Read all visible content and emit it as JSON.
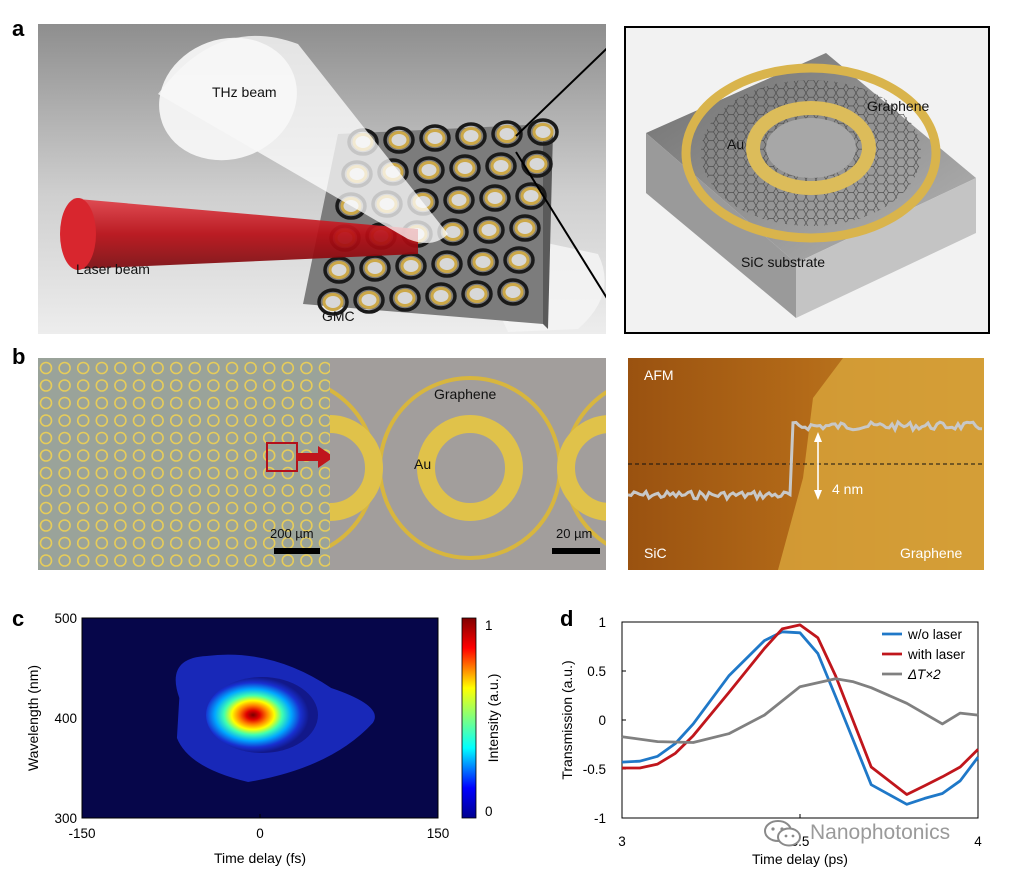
{
  "panels": {
    "a": {
      "letter": "a",
      "labels": {
        "thz_beam": "THz beam",
        "laser_beam": "Laser beam",
        "gmc": "GMC"
      },
      "inset": {
        "graphene": "Graphene",
        "au": "Au",
        "sic_substrate": "SiC substrate"
      }
    },
    "b": {
      "letter": "b",
      "scalebar_left": "200 µm",
      "graphene": "Graphene",
      "au": "Au",
      "scalebar_right": "20 µm",
      "afm": {
        "title": "AFM",
        "step": "4 nm",
        "sic": "SiC",
        "graphene": "Graphene"
      }
    },
    "c": {
      "letter": "c"
    },
    "d": {
      "letter": "d"
    }
  },
  "watermark": "Nanophotonics",
  "colors": {
    "laser": "#c8141e",
    "gold": "#e2c45a",
    "afm_dark": "#8a4a10",
    "afm_light": "#c48a2a",
    "blue": "#1f78c8",
    "red": "#c0161c",
    "gray": "#808080"
  },
  "chart_data": [
    {
      "id": "c",
      "type": "heatmap",
      "xlabel": "Time delay (fs)",
      "ylabel": "Wavelength (nm)",
      "xlim": [
        -150,
        150
      ],
      "ylim": [
        300,
        500
      ],
      "xticks": [
        "-150",
        "0",
        "150"
      ],
      "yticks": [
        "500",
        "400",
        "300"
      ],
      "peak": {
        "x": 0,
        "y": 403
      },
      "colorbar": {
        "label": "Intensity (a.u.)",
        "ticks": [
          "1",
          "0"
        ],
        "range": [
          0,
          1
        ]
      }
    },
    {
      "id": "d",
      "type": "line",
      "xlabel": "Time delay (ps)",
      "ylabel": "Transmission (a.u.)",
      "xlim": [
        3,
        4
      ],
      "ylim": [
        -1,
        1
      ],
      "xticks": [
        "3",
        "3.5",
        "4"
      ],
      "yticks": [
        "1",
        "0.5",
        "0",
        "-0.5",
        "-1"
      ],
      "legend_position": "top-right",
      "series": [
        {
          "name": "w/o laser",
          "color": "#1f78c8",
          "x": [
            3.0,
            3.05,
            3.1,
            3.15,
            3.2,
            3.3,
            3.4,
            3.45,
            3.5,
            3.55,
            3.6,
            3.7,
            3.8,
            3.85,
            3.9,
            3.95,
            4.0
          ],
          "y": [
            -0.43,
            -0.42,
            -0.37,
            -0.24,
            -0.04,
            0.45,
            0.81,
            0.9,
            0.89,
            0.68,
            0.24,
            -0.66,
            -0.86,
            -0.8,
            -0.75,
            -0.62,
            -0.38
          ]
        },
        {
          "name": "with laser",
          "color": "#c0161c",
          "x": [
            3.0,
            3.05,
            3.1,
            3.15,
            3.2,
            3.3,
            3.4,
            3.45,
            3.5,
            3.55,
            3.6,
            3.7,
            3.8,
            3.85,
            3.9,
            3.95,
            4.0
          ],
          "y": [
            -0.49,
            -0.49,
            -0.45,
            -0.34,
            -0.16,
            0.28,
            0.73,
            0.93,
            0.97,
            0.84,
            0.45,
            -0.48,
            -0.76,
            -0.67,
            -0.58,
            -0.48,
            -0.3
          ]
        },
        {
          "name": "ΔT×2",
          "color": "#808080",
          "x": [
            3.0,
            3.1,
            3.2,
            3.3,
            3.4,
            3.5,
            3.6,
            3.65,
            3.7,
            3.8,
            3.9,
            3.95,
            4.0
          ],
          "y": [
            -0.17,
            -0.22,
            -0.23,
            -0.14,
            0.05,
            0.34,
            0.42,
            0.39,
            0.33,
            0.17,
            -0.04,
            0.07,
            0.05
          ]
        }
      ]
    }
  ]
}
